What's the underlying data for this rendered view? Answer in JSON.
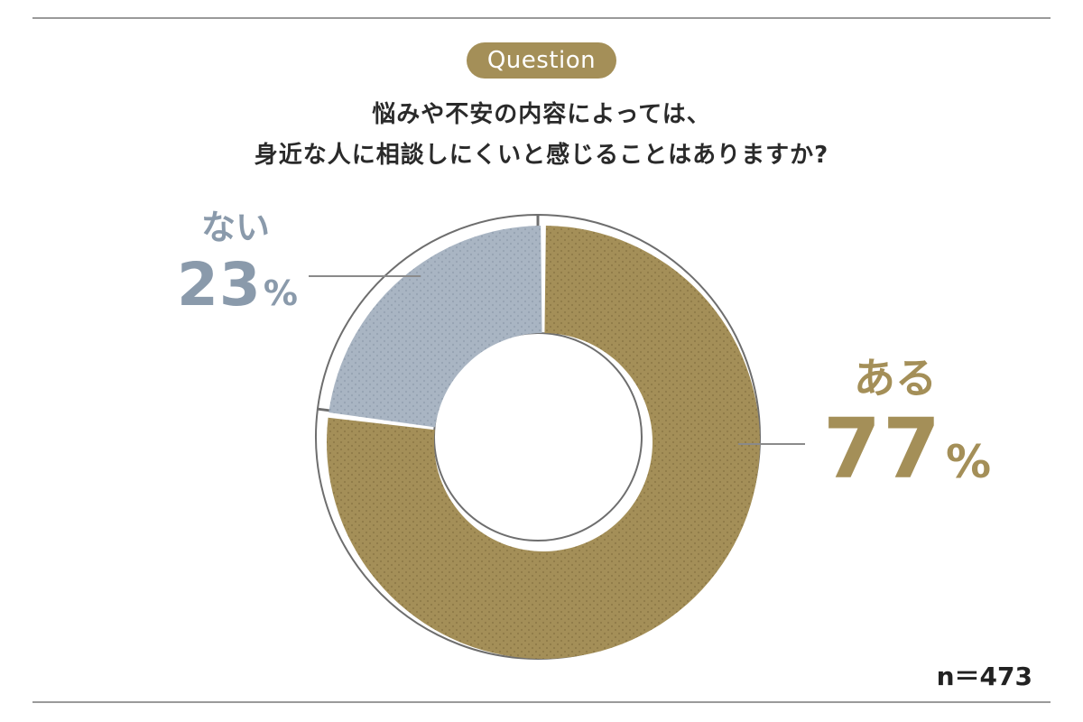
{
  "badge": "Question",
  "title_lines": [
    "悩みや不安の内容によっては、",
    "身近な人に相談しにくいと感じることはありますか?"
  ],
  "sample_size": "n＝473",
  "chart_data": {
    "type": "pie",
    "donut": true,
    "categories": [
      "ある",
      "ない"
    ],
    "values": [
      77,
      23
    ],
    "value_suffix": "%",
    "colors": [
      "#a48f58",
      "#a9b5c3"
    ],
    "label_colors": [
      "#a48f58",
      "#8a9aab"
    ]
  }
}
